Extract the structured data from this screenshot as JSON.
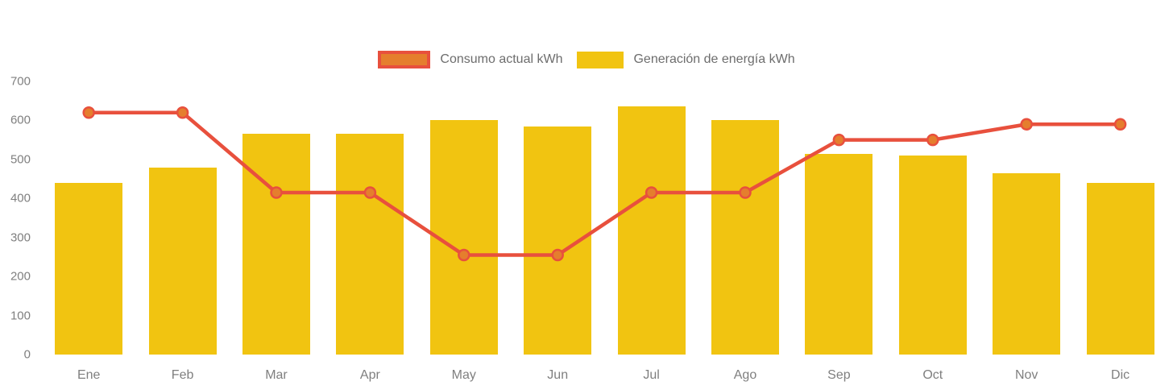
{
  "chart_data": {
    "type": "bar",
    "title": "",
    "xlabel": "",
    "ylabel": "",
    "categories": [
      "Ene",
      "Feb",
      "Mar",
      "Apr",
      "May",
      "Jun",
      "Jul",
      "Ago",
      "Sep",
      "Oct",
      "Nov",
      "Dic"
    ],
    "series": [
      {
        "name": "Consumo actual kWh",
        "type": "line",
        "color": "#e8503d",
        "marker_color": "#e57e2d",
        "values": [
          620,
          620,
          415,
          415,
          255,
          255,
          415,
          415,
          550,
          550,
          590,
          590
        ]
      },
      {
        "name": "Generación de energía kWh",
        "type": "bar",
        "color": "#f1c411",
        "values": [
          440,
          480,
          565,
          565,
          600,
          585,
          635,
          600,
          515,
          510,
          465,
          440
        ]
      }
    ],
    "ylim": [
      0,
      700
    ],
    "yticks": [
      0,
      100,
      200,
      300,
      400,
      500,
      600,
      700
    ],
    "grid": false,
    "legend_position": "top-center",
    "axis_text_color": "#7f7f7f"
  }
}
